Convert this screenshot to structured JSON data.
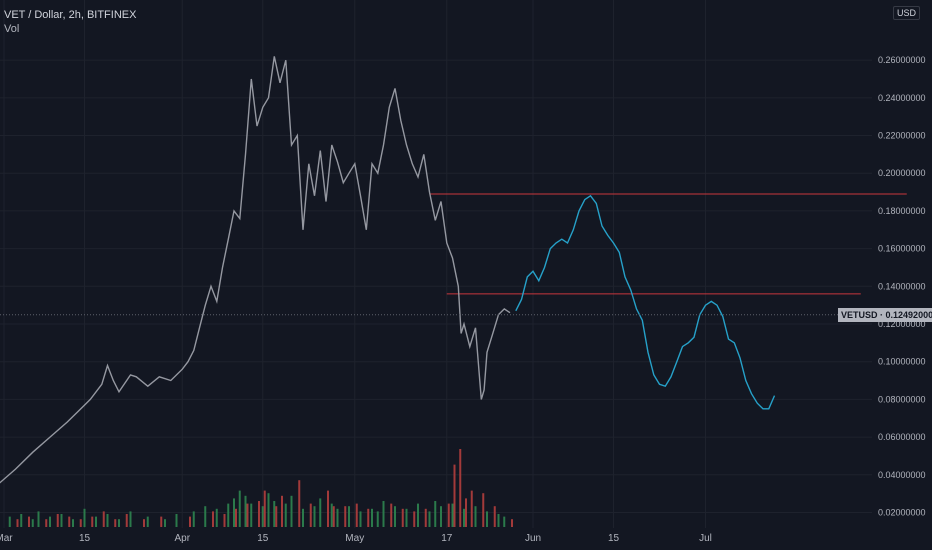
{
  "header": {
    "symbol_title": "VET / Dollar, 2h, BITFINEX",
    "volume_label": "Vol"
  },
  "currency_badge": "USD",
  "last_price_tag": {
    "symbol": "VETUSD",
    "price": "0.12492000",
    "price_value": 0.12492
  },
  "colors": {
    "background": "#131722",
    "grid": "#1e222d",
    "price_line": "#9598a1",
    "projection": "#26a1c9",
    "resistance": "#c8373c",
    "volume_up": "#2b7a4b",
    "volume_down": "#a33a3a",
    "text": "#b2b5be"
  },
  "chart_data": {
    "type": "line",
    "title": "VET / Dollar, 2h, BITFINEX",
    "ylim": [
      0.016,
      0.276
    ],
    "y_ticks": [
      "0.02000000",
      "0.04000000",
      "0.06000000",
      "0.08000000",
      "0.10000000",
      "0.12000000",
      "0.14000000",
      "0.16000000",
      "0.18000000",
      "0.20000000",
      "0.22000000",
      "0.24000000",
      "0.26000000"
    ],
    "y_tick_values": [
      0.02,
      0.04,
      0.06,
      0.08,
      0.1,
      0.12,
      0.14,
      0.16,
      0.18,
      0.2,
      0.22,
      0.24,
      0.26
    ],
    "x_ticks": [
      "Mar",
      "15",
      "Apr",
      "15",
      "May",
      "17",
      "Jun",
      "15",
      "Jul"
    ],
    "x_tick_days": [
      0,
      14,
      31,
      45,
      61,
      77,
      92,
      106,
      122
    ],
    "x_axis_start": "2021-03-01",
    "series": [
      {
        "kind": "price",
        "points": [
          [
            -1,
            0.035
          ],
          [
            2,
            0.043
          ],
          [
            5,
            0.052
          ],
          [
            8,
            0.06
          ],
          [
            11,
            0.068
          ],
          [
            13,
            0.074
          ],
          [
            15,
            0.08
          ],
          [
            17,
            0.088
          ],
          [
            18,
            0.098
          ],
          [
            19,
            0.09
          ],
          [
            20,
            0.084
          ],
          [
            22,
            0.093
          ],
          [
            23,
            0.092
          ],
          [
            25,
            0.087
          ],
          [
            27,
            0.092
          ],
          [
            29,
            0.09
          ],
          [
            31,
            0.096
          ],
          [
            32,
            0.1
          ],
          [
            33,
            0.106
          ],
          [
            34,
            0.118
          ],
          [
            35,
            0.13
          ],
          [
            36,
            0.14
          ],
          [
            37,
            0.132
          ],
          [
            38,
            0.15
          ],
          [
            39,
            0.165
          ],
          [
            40,
            0.18
          ],
          [
            41,
            0.176
          ],
          [
            42,
            0.21
          ],
          [
            42.5,
            0.23
          ],
          [
            43,
            0.25
          ],
          [
            44,
            0.225
          ],
          [
            45,
            0.235
          ],
          [
            46,
            0.24
          ],
          [
            47,
            0.262
          ],
          [
            48,
            0.248
          ],
          [
            49,
            0.26
          ],
          [
            50,
            0.215
          ],
          [
            51,
            0.22
          ],
          [
            52,
            0.17
          ],
          [
            53,
            0.205
          ],
          [
            54,
            0.188
          ],
          [
            55,
            0.212
          ],
          [
            56,
            0.185
          ],
          [
            57,
            0.215
          ],
          [
            58,
            0.206
          ],
          [
            59,
            0.195
          ],
          [
            60,
            0.2
          ],
          [
            61,
            0.205
          ],
          [
            62,
            0.188
          ],
          [
            63,
            0.17
          ],
          [
            64,
            0.205
          ],
          [
            65,
            0.2
          ],
          [
            66,
            0.215
          ],
          [
            67,
            0.235
          ],
          [
            68,
            0.245
          ],
          [
            69,
            0.228
          ],
          [
            70,
            0.215
          ],
          [
            71,
            0.205
          ],
          [
            72,
            0.198
          ],
          [
            73,
            0.21
          ],
          [
            74,
            0.19
          ],
          [
            75,
            0.175
          ],
          [
            76,
            0.185
          ],
          [
            77,
            0.163
          ],
          [
            78,
            0.155
          ],
          [
            79,
            0.14
          ],
          [
            79.5,
            0.115
          ],
          [
            80,
            0.12
          ],
          [
            81,
            0.108
          ],
          [
            82,
            0.118
          ],
          [
            83,
            0.08
          ],
          [
            83.5,
            0.085
          ],
          [
            84,
            0.105
          ],
          [
            85,
            0.115
          ],
          [
            86,
            0.125
          ],
          [
            87,
            0.128
          ],
          [
            88,
            0.126
          ]
        ]
      },
      {
        "kind": "projection",
        "points": [
          [
            89,
            0.127
          ],
          [
            90,
            0.133
          ],
          [
            91,
            0.145
          ],
          [
            92,
            0.148
          ],
          [
            93,
            0.143
          ],
          [
            94,
            0.15
          ],
          [
            95,
            0.16
          ],
          [
            96,
            0.163
          ],
          [
            97,
            0.165
          ],
          [
            98,
            0.163
          ],
          [
            99,
            0.17
          ],
          [
            100,
            0.18
          ],
          [
            101,
            0.186
          ],
          [
            102,
            0.188
          ],
          [
            103,
            0.184
          ],
          [
            104,
            0.172
          ],
          [
            105,
            0.167
          ],
          [
            106,
            0.163
          ],
          [
            107,
            0.158
          ],
          [
            108,
            0.145
          ],
          [
            109,
            0.138
          ],
          [
            110,
            0.128
          ],
          [
            111,
            0.122
          ],
          [
            112,
            0.105
          ],
          [
            113,
            0.093
          ],
          [
            114,
            0.088
          ],
          [
            115,
            0.087
          ],
          [
            116,
            0.092
          ],
          [
            117,
            0.1
          ],
          [
            118,
            0.108
          ],
          [
            119,
            0.11
          ],
          [
            120,
            0.113
          ],
          [
            121,
            0.125
          ],
          [
            122,
            0.13
          ],
          [
            123,
            0.132
          ],
          [
            124,
            0.13
          ],
          [
            125,
            0.124
          ],
          [
            126,
            0.112
          ],
          [
            127,
            0.11
          ],
          [
            128,
            0.102
          ],
          [
            129,
            0.09
          ],
          [
            130,
            0.083
          ],
          [
            131,
            0.078
          ],
          [
            132,
            0.075
          ],
          [
            133,
            0.075
          ],
          [
            134,
            0.082
          ]
        ]
      }
    ],
    "horizontal_lines": [
      {
        "price": 0.189,
        "from_day": 74,
        "to_day": 157
      },
      {
        "price": 0.136,
        "from_day": 77,
        "to_day": 149
      }
    ],
    "volume": {
      "up": [
        [
          1,
          4
        ],
        [
          3,
          5
        ],
        [
          5,
          3
        ],
        [
          6,
          6
        ],
        [
          8,
          4
        ],
        [
          10,
          5
        ],
        [
          12,
          3
        ],
        [
          14,
          7
        ],
        [
          16,
          4
        ],
        [
          18,
          5
        ],
        [
          20,
          3
        ],
        [
          22,
          6
        ],
        [
          25,
          4
        ],
        [
          28,
          3
        ],
        [
          30,
          5
        ],
        [
          33,
          6
        ],
        [
          35,
          8
        ],
        [
          37,
          7
        ],
        [
          39,
          9
        ],
        [
          40,
          11
        ],
        [
          41,
          14
        ],
        [
          42,
          12
        ],
        [
          43,
          9
        ],
        [
          45,
          8
        ],
        [
          46,
          13
        ],
        [
          47,
          10
        ],
        [
          49,
          9
        ],
        [
          50,
          12
        ],
        [
          52,
          7
        ],
        [
          54,
          8
        ],
        [
          55,
          11
        ],
        [
          57,
          9
        ],
        [
          58,
          7
        ],
        [
          60,
          8
        ],
        [
          62,
          6
        ],
        [
          64,
          7
        ],
        [
          65,
          6
        ],
        [
          66,
          10
        ],
        [
          68,
          8
        ],
        [
          70,
          7
        ],
        [
          72,
          9
        ],
        [
          74,
          6
        ],
        [
          75,
          10
        ],
        [
          76,
          8
        ],
        [
          78,
          9
        ],
        [
          80,
          7
        ],
        [
          82,
          8
        ],
        [
          84,
          6
        ],
        [
          86,
          5
        ],
        [
          87,
          4
        ]
      ],
      "down": [
        [
          2,
          3
        ],
        [
          4,
          4
        ],
        [
          7,
          3
        ],
        [
          9,
          5
        ],
        [
          11,
          4
        ],
        [
          13,
          3
        ],
        [
          15,
          4
        ],
        [
          17,
          6
        ],
        [
          19,
          3
        ],
        [
          21,
          5
        ],
        [
          24,
          3
        ],
        [
          27,
          4
        ],
        [
          32,
          4
        ],
        [
          36,
          6
        ],
        [
          38,
          5
        ],
        [
          40,
          7
        ],
        [
          42,
          9
        ],
        [
          44,
          10
        ],
        [
          45,
          14
        ],
        [
          47,
          8
        ],
        [
          48,
          12
        ],
        [
          51,
          18
        ],
        [
          53,
          9
        ],
        [
          56,
          14
        ],
        [
          57,
          8
        ],
        [
          59,
          8
        ],
        [
          61,
          9
        ],
        [
          63,
          7
        ],
        [
          67,
          9
        ],
        [
          69,
          7
        ],
        [
          71,
          6
        ],
        [
          73,
          7
        ],
        [
          77,
          9
        ],
        [
          78,
          24
        ],
        [
          79,
          30
        ],
        [
          80,
          11
        ],
        [
          81,
          14
        ],
        [
          83,
          13
        ],
        [
          85,
          8
        ],
        [
          88,
          3
        ]
      ]
    }
  }
}
